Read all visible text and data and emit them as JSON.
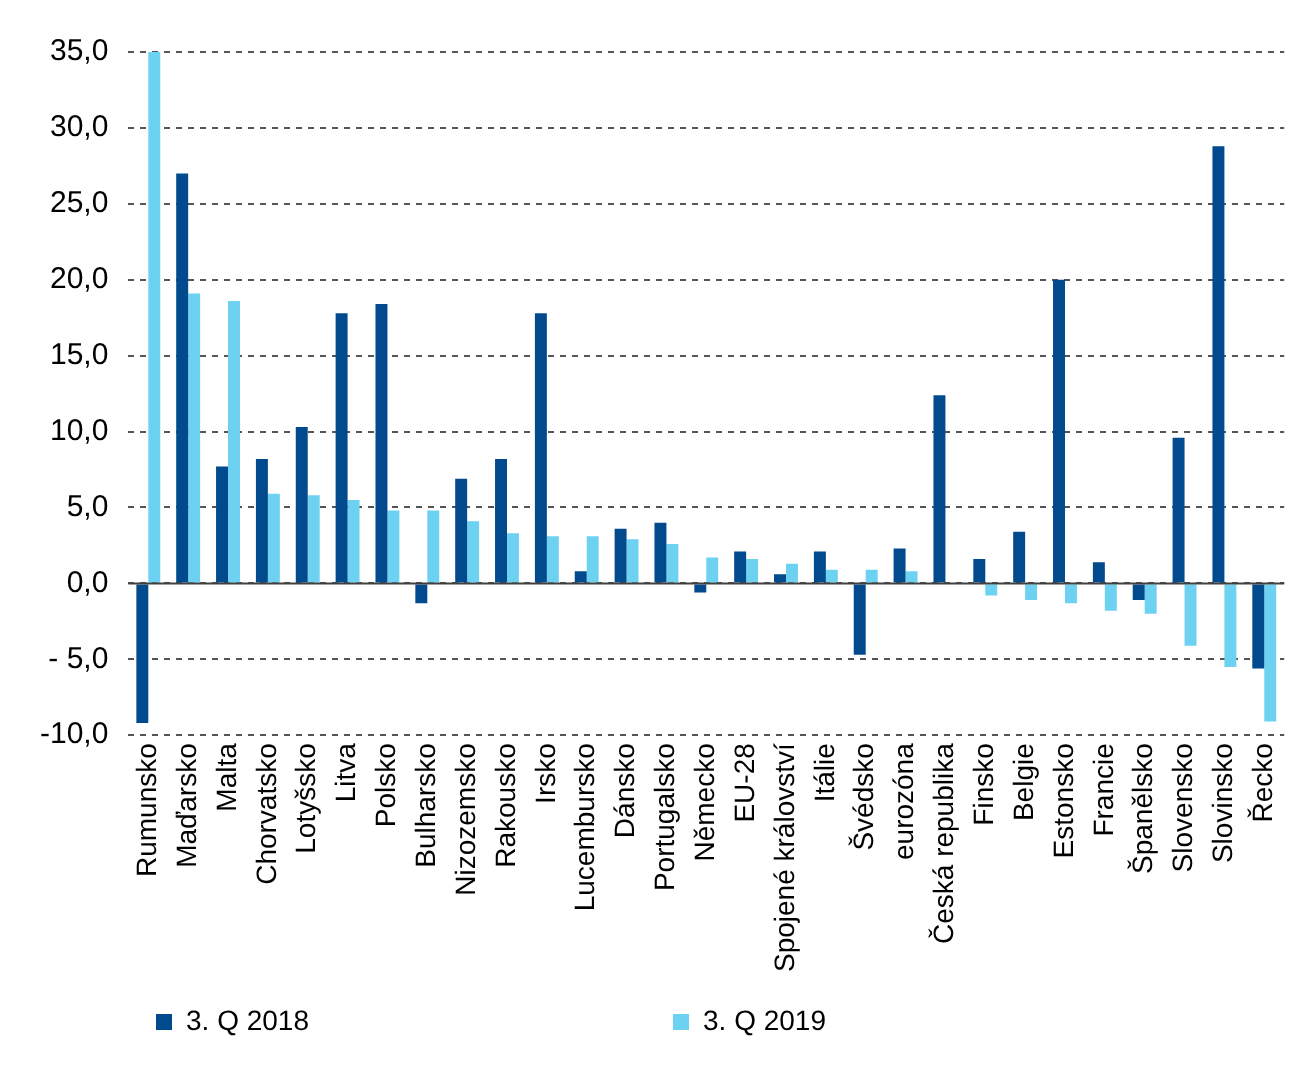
{
  "chart_data": {
    "type": "bar",
    "categories": [
      "Rumunsko",
      "Maďarsko",
      "Malta",
      "Chorvatsko",
      "Lotyšsko",
      "Litva",
      "Polsko",
      "Bulharsko",
      "Nizozemsko",
      "Rakousko",
      "Irsko",
      "Lucembursko",
      "Dánsko",
      "Portugalsko",
      "Německo",
      "EU-28",
      "Spojené království",
      "Itálie",
      "Švédsko",
      "eurozóna",
      "Česká republika",
      "Finsko",
      "Belgie",
      "Estonsko",
      "Francie",
      "Španělsko",
      "Slovensko",
      "Slovinsko",
      "Řecko"
    ],
    "series": [
      {
        "name": "3. Q 2018",
        "color": "#004a8d",
        "values": [
          -9.2,
          27.0,
          7.7,
          8.2,
          10.3,
          17.8,
          18.4,
          -1.3,
          6.9,
          8.2,
          17.8,
          0.8,
          3.6,
          4.0,
          -0.6,
          2.1,
          0.6,
          2.1,
          -4.7,
          2.3,
          12.4,
          1.6,
          3.4,
          20.0,
          1.4,
          -1.1,
          9.6,
          28.8,
          -5.6
        ]
      },
      {
        "name": "3. Q 2019",
        "color": "#6dd2f2",
        "values": [
          35.0,
          19.1,
          18.6,
          5.9,
          5.8,
          5.5,
          4.8,
          4.8,
          4.1,
          3.3,
          3.1,
          3.1,
          2.9,
          2.6,
          1.7,
          1.6,
          1.3,
          0.9,
          0.9,
          0.8,
          0.0,
          -0.8,
          -1.1,
          -1.3,
          -1.8,
          -2.0,
          -4.1,
          -5.5,
          -9.1
        ]
      }
    ],
    "ylim": [
      -10,
      35
    ],
    "yticks": [
      {
        "value": -10,
        "label": "-10,0"
      },
      {
        "value": -5,
        "label": "- 5,0"
      },
      {
        "value": 0,
        "label": "0,0"
      },
      {
        "value": 5,
        "label": "5,0"
      },
      {
        "value": 10,
        "label": "10,0"
      },
      {
        "value": 15,
        "label": "15,0"
      },
      {
        "value": 20,
        "label": "20,0"
      },
      {
        "value": 25,
        "label": "25,0"
      },
      {
        "value": 30,
        "label": "30,0"
      },
      {
        "value": 35,
        "label": "35,0"
      }
    ],
    "grid": "y",
    "legend": "bottom"
  }
}
